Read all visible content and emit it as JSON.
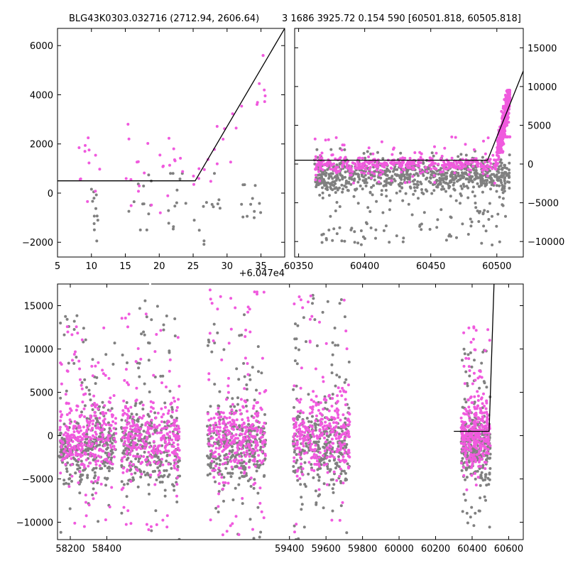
{
  "title_left": "BLG43K0303.032716 (2712.94, 2606.64)",
  "title_right": "3 1686 3925.72 0.154 590 [60501.818, 60505.818]",
  "colors": {
    "magenta": "#f05ade",
    "gray": "#808080",
    "line": "#000000"
  },
  "chart_data": [
    {
      "panel": "top-left",
      "type": "scatter",
      "xlim": [
        5,
        38.5
      ],
      "ylim": [
        -2600,
        6700
      ],
      "x_offset_label": "+6.047e4",
      "xticks": [
        5,
        10,
        15,
        20,
        25,
        30,
        35
      ],
      "yticks": [
        -2000,
        0,
        2000,
        4000,
        6000
      ],
      "model_line": [
        [
          5,
          500
        ],
        [
          25.3,
          500
        ],
        [
          38.5,
          6700
        ]
      ],
      "series": [
        {
          "color": "magenta",
          "clusters": [
            {
              "x": [
                8,
                12
              ],
              "y": [
                -1800,
                3200
              ]
            },
            {
              "x": [
                15,
                19
              ],
              "y": [
                -2400,
                2800
              ]
            },
            {
              "x": [
                20,
                24
              ],
              "y": [
                -800,
                3000
              ]
            },
            {
              "x": [
                25,
                30
              ],
              "y": [
                0,
                3500
              ]
            },
            {
              "x": [
                30,
                36
              ],
              "y": [
                1200,
                5600
              ]
            }
          ]
        },
        {
          "color": "gray",
          "clusters": [
            {
              "x": [
                10,
                11
              ],
              "y": [
                -2000,
                200
              ]
            },
            {
              "x": [
                15,
                19
              ],
              "y": [
                -1500,
                1300
              ]
            },
            {
              "x": [
                21,
                24
              ],
              "y": [
                -1800,
                800
              ]
            },
            {
              "x": [
                25,
                29
              ],
              "y": [
                -2500,
                800
              ]
            },
            {
              "x": [
                32,
                35
              ],
              "y": [
                -1000,
                1800
              ]
            }
          ]
        }
      ]
    },
    {
      "panel": "top-right",
      "type": "scatter",
      "xlim": [
        60347,
        60520
      ],
      "ylim": [
        -12000,
        17500
      ],
      "xticks": [
        60350,
        60400,
        60450,
        60500
      ],
      "yticks": [
        -10000,
        -5000,
        0,
        5000,
        10000,
        15000
      ],
      "model_line": [
        [
          60347,
          500
        ],
        [
          60493,
          500
        ],
        [
          60520,
          12000
        ]
      ],
      "series": [
        {
          "color": "magenta",
          "clusters": [
            {
              "x": [
                60362,
                60510
              ],
              "y": [
                -2500,
                3500
              ]
            },
            {
              "x": [
                60500,
                60510
              ],
              "y": [
                1500,
                9500
              ]
            }
          ]
        },
        {
          "color": "gray",
          "clusters": [
            {
              "x": [
                60362,
                60510
              ],
              "y": [
                -10500,
                2000
              ]
            }
          ]
        }
      ]
    },
    {
      "panel": "bottom",
      "type": "scatter",
      "xlim": [
        58130,
        60680
      ],
      "ylim": [
        -12000,
        17500
      ],
      "xticks": [
        58200,
        58400,
        59400,
        59600,
        59800,
        60000,
        60200,
        60400,
        60600
      ],
      "yticks": [
        -10000,
        -5000,
        0,
        5000,
        10000,
        15000
      ],
      "model_line": [
        [
          60300,
          500
        ],
        [
          60493,
          500
        ],
        [
          60520,
          17500
        ]
      ],
      "series": [
        {
          "color": "magenta",
          "clusters": [
            {
              "x": [
                58140,
                58450
              ],
              "y": [
                -11500,
                13500
              ]
            },
            {
              "x": [
                58480,
                58800
              ],
              "y": [
                -11500,
                15800
              ]
            },
            {
              "x": [
                58950,
                59270
              ],
              "y": [
                -11500,
                17000
              ]
            },
            {
              "x": [
                59420,
                59730
              ],
              "y": [
                -11500,
                16300
              ]
            },
            {
              "x": [
                60340,
                60500
              ],
              "y": [
                -9000,
                14000
              ]
            }
          ]
        },
        {
          "color": "gray",
          "clusters": [
            {
              "x": [
                58140,
                58450
              ],
              "y": [
                -11500,
                14000
              ]
            },
            {
              "x": [
                58480,
                58800
              ],
              "y": [
                -12000,
                15600
              ]
            },
            {
              "x": [
                58950,
                59270
              ],
              "y": [
                -12000,
                15000
              ]
            },
            {
              "x": [
                59420,
                59730
              ],
              "y": [
                -12000,
                16300
              ]
            },
            {
              "x": [
                60340,
                60500
              ],
              "y": [
                -11000,
                10000
              ]
            }
          ]
        }
      ]
    }
  ]
}
